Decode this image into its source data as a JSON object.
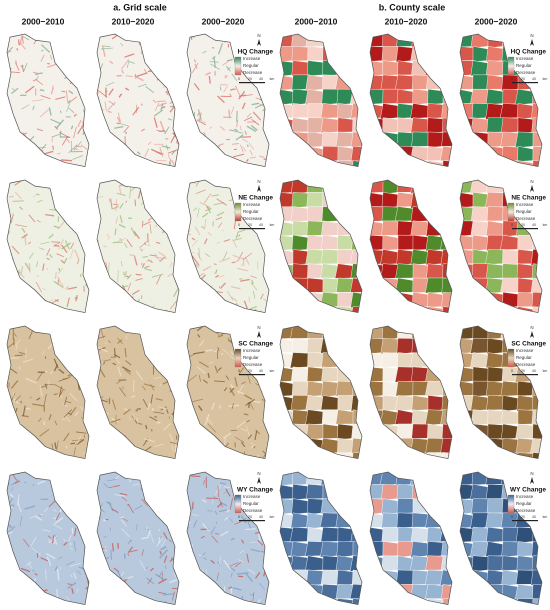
{
  "headers": {
    "grid": "a. Grid scale",
    "county": "b. County scale"
  },
  "columns": [
    "2000−2010",
    "2010−2020",
    "2000−2020",
    "2000−2010",
    "2010−2020",
    "2000−2020"
  ],
  "rows": [
    {
      "legend_title": "HQ Change",
      "legend": [
        "Increase",
        "Regular",
        "Decrease"
      ],
      "north": "N",
      "scale": [
        "0",
        "20",
        "40",
        "km"
      ]
    },
    {
      "legend_title": "NE Change",
      "legend": [
        "Increase",
        "Regular",
        "Decrease"
      ],
      "north": "N",
      "scale": [
        "0",
        "20",
        "40",
        "km"
      ]
    },
    {
      "legend_title": "SC Change",
      "legend": [
        "Increase",
        "Regular",
        "Decrease"
      ],
      "north": "N",
      "scale": [
        "0",
        "20",
        "40",
        "km"
      ]
    },
    {
      "legend_title": "WY Change",
      "legend": [
        "Increase",
        "Regular",
        "Decrease"
      ],
      "north": "N",
      "scale": [
        "0",
        "20",
        "40",
        "km"
      ]
    }
  ]
}
